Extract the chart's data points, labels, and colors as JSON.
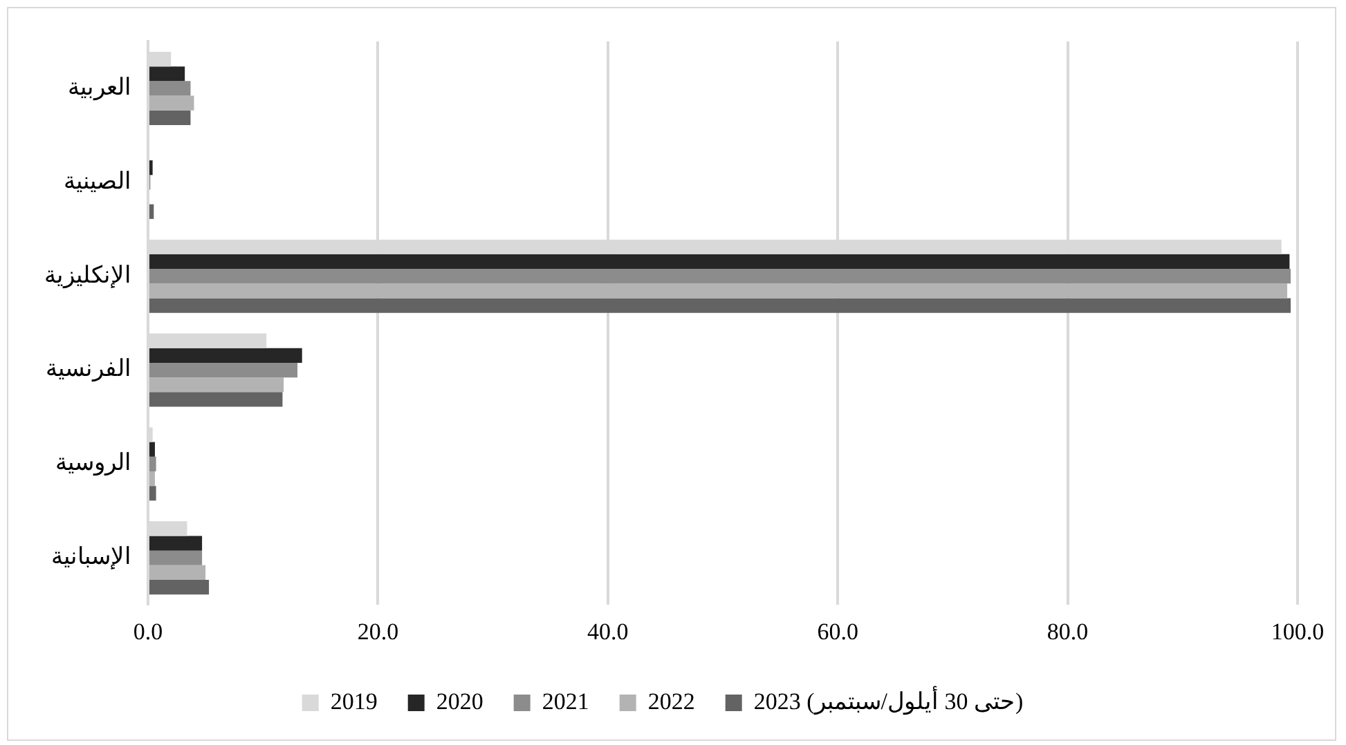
{
  "chart_data": {
    "type": "bar",
    "orientation": "horizontal",
    "categories": [
      "العربية",
      "الصينية",
      "الإنكليزية",
      "الفرنسية",
      "الروسية",
      "الإسبانية"
    ],
    "series": [
      {
        "name": "2019",
        "color": "#d9d9d9",
        "values": [
          2.0,
          0.1,
          98.6,
          10.3,
          0.4,
          3.4
        ]
      },
      {
        "name": "2020",
        "color": "#262626",
        "values": [
          3.2,
          0.4,
          99.3,
          13.4,
          0.6,
          4.7
        ]
      },
      {
        "name": "2021",
        "color": "#8c8c8c",
        "values": [
          3.7,
          0.2,
          99.4,
          13.0,
          0.7,
          4.7
        ]
      },
      {
        "name": "2022",
        "color": "#b3b3b3",
        "values": [
          4.0,
          null,
          99.1,
          11.8,
          0.6,
          5.0
        ]
      },
      {
        "name": "2023 (حتى 30 أيلول/سبتمبر)",
        "color": "#636363",
        "values": [
          3.7,
          0.5,
          99.4,
          11.7,
          0.7,
          5.3
        ]
      }
    ],
    "xlim": [
      0,
      100
    ],
    "xticks": [
      {
        "value": 0,
        "label": "0.0"
      },
      {
        "value": 20,
        "label": "20.0"
      },
      {
        "value": 40,
        "label": "40.0"
      },
      {
        "value": 60,
        "label": "60.0"
      },
      {
        "value": 80,
        "label": "80.0"
      },
      {
        "value": 100,
        "label": "100.0"
      }
    ],
    "grid": "x",
    "legend": "bottom"
  }
}
